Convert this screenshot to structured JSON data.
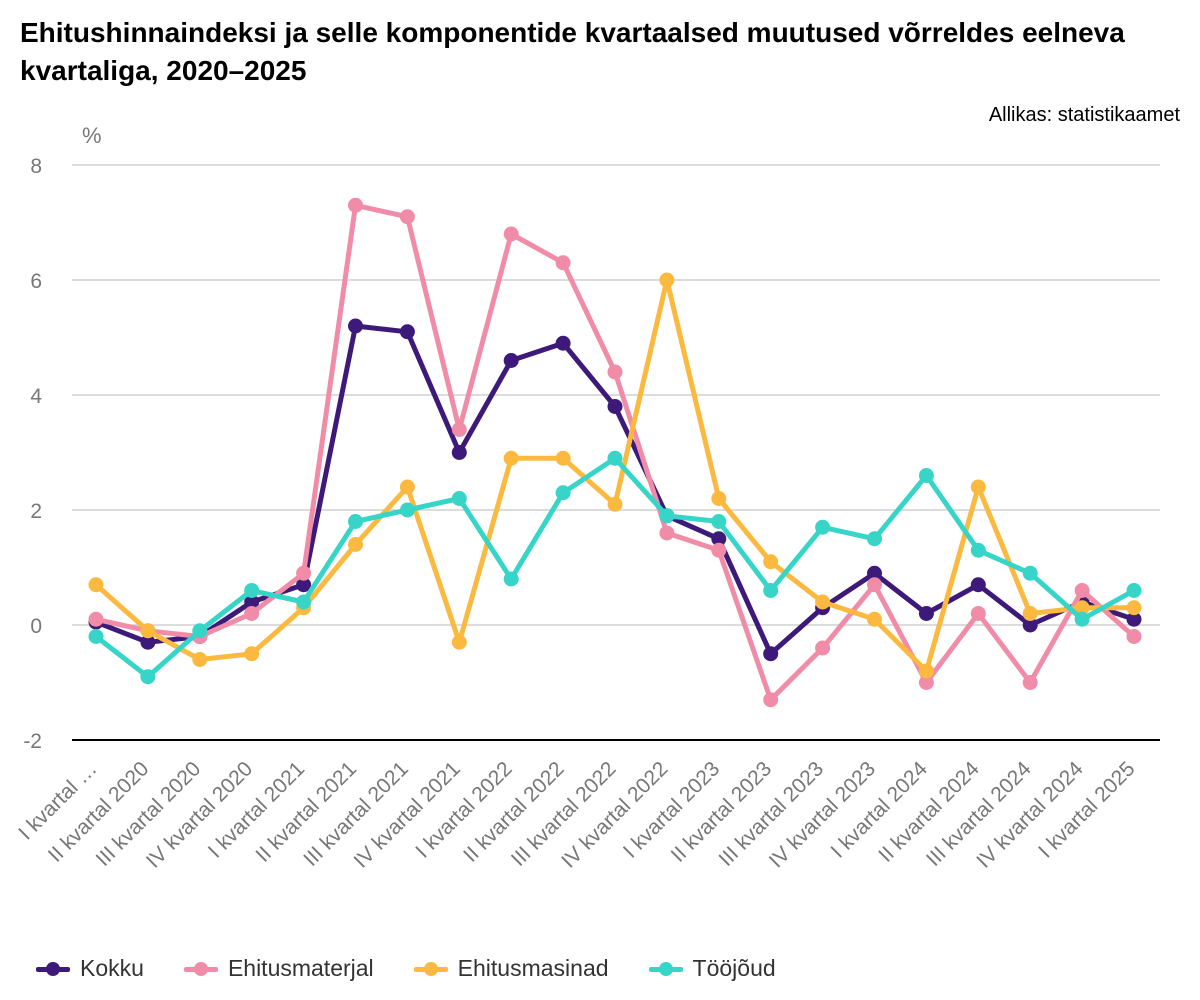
{
  "title": "Ehitushinnaindeksi ja selle komponentide kvartaalsed muutused võrreldes eelneva kvartaliga, 2020–2025",
  "source": "Allikas: statistikaamet",
  "chart_data": {
    "type": "line",
    "unit_label": "%",
    "ylim": [
      -2,
      8
    ],
    "yticks": [
      -2,
      0,
      2,
      4,
      6,
      8
    ],
    "grid": true,
    "legend_position": "bottom",
    "categories": [
      "I kvartal …",
      "II kvartal 2020",
      "III kvartal 2020",
      "IV kvartal 2020",
      "I kvartal 2021",
      "II kvartal 2021",
      "III kvartal 2021",
      "IV kvartal 2021",
      "I kvartal 2022",
      "II kvartal 2022",
      "III kvartal 2022",
      "IV kvartal 2022",
      "I kvartal 2023",
      "II kvartal 2023",
      "III kvartal 2023",
      "IV kvartal 2023",
      "I kvartal 2024",
      "II kvartal 2024",
      "III kvartal 2024",
      "IV kvartal 2024",
      "I kvartal 2025"
    ],
    "series": [
      {
        "name": "Kokku",
        "color": "#3d1a7a",
        "values": [
          0.05,
          -0.3,
          -0.2,
          0.4,
          0.7,
          5.2,
          5.1,
          3.0,
          4.6,
          4.9,
          3.8,
          1.9,
          1.5,
          -0.5,
          0.3,
          0.9,
          0.2,
          0.7,
          0.0,
          0.4,
          0.1
        ]
      },
      {
        "name": "Ehitusmaterjal",
        "color": "#f08ca8",
        "values": [
          0.1,
          -0.1,
          -0.2,
          0.2,
          0.9,
          7.3,
          7.1,
          3.4,
          6.8,
          6.3,
          4.4,
          1.6,
          1.3,
          -1.3,
          -0.4,
          0.7,
          -1.0,
          0.2,
          -1.0,
          0.6,
          -0.2
        ]
      },
      {
        "name": "Ehitusmasinad",
        "color": "#fbb940",
        "values": [
          0.7,
          -0.1,
          -0.6,
          -0.5,
          0.3,
          1.4,
          2.4,
          -0.3,
          2.9,
          2.9,
          2.1,
          6.0,
          2.2,
          1.1,
          0.4,
          0.1,
          -0.8,
          2.4,
          0.2,
          0.3,
          0.3
        ]
      },
      {
        "name": "Tööjõud",
        "color": "#36d5c8",
        "values": [
          -0.2,
          -0.9,
          -0.1,
          0.6,
          0.4,
          1.8,
          2.0,
          2.2,
          0.8,
          2.3,
          2.9,
          1.9,
          1.8,
          0.6,
          1.7,
          1.5,
          2.6,
          1.3,
          0.9,
          0.1,
          0.6
        ]
      }
    ]
  }
}
